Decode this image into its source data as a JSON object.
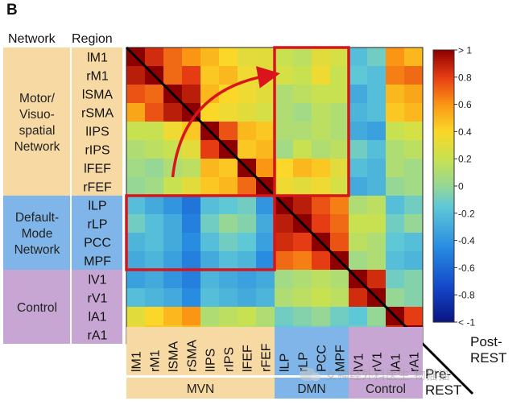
{
  "panel_label": "B",
  "header": {
    "network_label": "Network",
    "region_label": "Region"
  },
  "networks_left": [
    {
      "lines": [
        "Motor/",
        "Visuo-",
        "spatial",
        "Network"
      ],
      "color": "#f7d9a4",
      "start": 0,
      "count": 8
    },
    {
      "lines": [
        "Default-",
        "Mode",
        "Network"
      ],
      "color": "#7fb5e8",
      "start": 8,
      "count": 4
    },
    {
      "lines": [
        "Control"
      ],
      "color": "#c7a6d3",
      "start": 12,
      "count": 4
    }
  ],
  "networks_bottom": [
    {
      "label": "MVN",
      "color": "#f7d9a4",
      "start": 0,
      "count": 8
    },
    {
      "label": "DMN",
      "color": "#7fb5e8",
      "start": 8,
      "count": 4
    },
    {
      "label": "Control",
      "color": "#c7a6d3",
      "start": 12,
      "count": 4
    }
  ],
  "corner_labels": {
    "post_rest": [
      "Post-",
      "REST"
    ],
    "pre_rest": [
      "Pre-",
      "REST"
    ]
  },
  "watermark": "女神经外科医生 物猫猫",
  "chart_data": {
    "type": "heatmap",
    "title": "",
    "regions": [
      "lM1",
      "rM1",
      "lSMA",
      "rSMA",
      "lIPS",
      "rIPS",
      "lFEF",
      "rFEF",
      "lLP",
      "rLP",
      "PCC",
      "MPF",
      "lV1",
      "rV1",
      "lA1",
      "rA1"
    ],
    "upper_triangle": "Post-REST",
    "lower_triangle": "Pre-REST",
    "colorbar": {
      "range": [
        -1,
        1
      ],
      "ticks": [
        1,
        0.8,
        0.6,
        0.4,
        0.2,
        0,
        -0.2,
        -0.4,
        -0.6,
        -0.8,
        -1
      ],
      "tick_labels": [
        "> 1",
        "0.8",
        "0.6",
        "0.4",
        "0.2",
        "0",
        "-0.2",
        "-0.4",
        "-0.6",
        "-0.8",
        "< -1"
      ]
    },
    "highlight_boxes": [
      {
        "rows": [
          0,
          7
        ],
        "cols": [
          8,
          11
        ],
        "triangle": "Post-REST"
      },
      {
        "rows": [
          8,
          11
        ],
        "cols": [
          0,
          7
        ],
        "triangle": "Pre-REST"
      }
    ],
    "arrow": {
      "from": "Pre-REST MVN–DMN block",
      "to": "Post-REST MVN–DMN block"
    },
    "matrix": [
      [
        1.0,
        0.85,
        0.7,
        0.6,
        0.5,
        0.4,
        0.3,
        0.3,
        0.2,
        0.15,
        0.3,
        0.25,
        -0.2,
        -0.1,
        0.6,
        0.5
      ],
      [
        0.9,
        1.0,
        0.7,
        0.8,
        0.45,
        0.5,
        0.35,
        0.3,
        0.25,
        0.2,
        0.35,
        0.2,
        -0.15,
        -0.2,
        0.65,
        0.7
      ],
      [
        0.75,
        0.7,
        1.0,
        0.9,
        0.5,
        0.4,
        0.35,
        0.3,
        0.1,
        0.15,
        0.2,
        0.2,
        -0.3,
        -0.2,
        0.5,
        0.55
      ],
      [
        0.55,
        0.75,
        0.9,
        1.0,
        0.4,
        0.35,
        0.3,
        0.25,
        0.1,
        0.05,
        0.15,
        0.1,
        -0.25,
        -0.2,
        0.45,
        0.5
      ],
      [
        0.2,
        0.2,
        0.35,
        0.45,
        1.0,
        0.75,
        0.5,
        0.45,
        0.1,
        0.1,
        0.15,
        0.1,
        -0.3,
        -0.35,
        0.2,
        0.25
      ],
      [
        0.1,
        0.15,
        0.2,
        0.3,
        0.8,
        1.0,
        0.45,
        0.5,
        0.05,
        0.2,
        0.1,
        0.15,
        -0.1,
        -0.2,
        0.1,
        0.15
      ],
      [
        0.05,
        0.0,
        0.1,
        0.15,
        0.5,
        0.45,
        1.0,
        0.6,
        0.4,
        0.5,
        0.45,
        0.3,
        -0.2,
        -0.25,
        0.1,
        0.05
      ],
      [
        0.0,
        0.05,
        0.2,
        0.3,
        0.45,
        0.5,
        0.7,
        1.0,
        0.35,
        0.3,
        0.35,
        0.25,
        -0.3,
        -0.25,
        0.0,
        0.05
      ],
      [
        -0.2,
        -0.3,
        -0.4,
        -0.55,
        -0.2,
        -0.15,
        -0.1,
        -0.4,
        1.0,
        0.9,
        0.75,
        0.65,
        0.1,
        0.15,
        -0.2,
        -0.1
      ],
      [
        -0.1,
        -0.2,
        -0.3,
        -0.5,
        -0.1,
        0.0,
        -0.05,
        -0.3,
        0.9,
        1.0,
        0.8,
        0.7,
        0.2,
        0.2,
        -0.1,
        0.0
      ],
      [
        -0.25,
        -0.2,
        -0.3,
        -0.45,
        -0.2,
        -0.1,
        -0.15,
        -0.35,
        0.85,
        0.8,
        1.0,
        0.75,
        0.15,
        0.1,
        -0.15,
        -0.2
      ],
      [
        -0.3,
        -0.25,
        -0.35,
        -0.5,
        -0.3,
        -0.2,
        -0.25,
        -0.45,
        0.7,
        0.65,
        0.8,
        1.0,
        0.05,
        0.1,
        -0.2,
        -0.25
      ],
      [
        -0.35,
        -0.3,
        -0.4,
        -0.5,
        -0.25,
        -0.3,
        -0.35,
        -0.3,
        0.05,
        0.1,
        0.15,
        0.1,
        1.0,
        0.85,
        -0.1,
        -0.05
      ],
      [
        -0.2,
        -0.25,
        -0.3,
        -0.45,
        -0.2,
        -0.25,
        -0.3,
        -0.25,
        0.1,
        0.15,
        0.2,
        0.15,
        0.85,
        1.0,
        0.0,
        -0.05
      ],
      [
        0.3,
        0.4,
        0.5,
        0.6,
        0.1,
        0.15,
        0.2,
        0.1,
        -0.1,
        -0.05,
        0.0,
        -0.1,
        -0.15,
        0.0,
        1.0,
        0.8
      ],
      [
        0.35,
        0.45,
        0.45,
        0.5,
        0.15,
        0.2,
        0.15,
        0.1,
        -0.15,
        -0.1,
        -0.05,
        -0.15,
        -0.1,
        -0.05,
        0.85,
        1.0
      ]
    ]
  }
}
